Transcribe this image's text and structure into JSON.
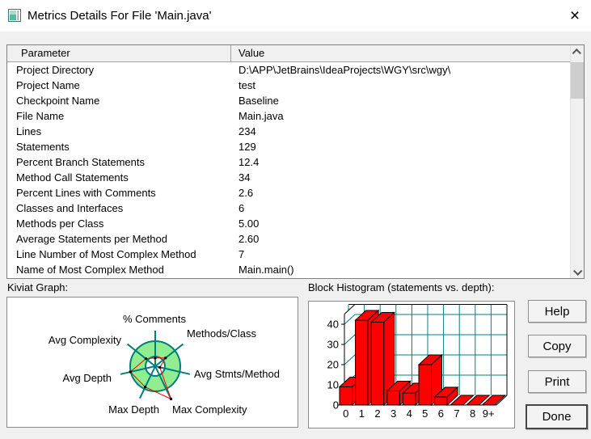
{
  "window": {
    "title": "Metrics Details For File 'Main.java'",
    "close_glyph": "×"
  },
  "table": {
    "columns": [
      "Parameter",
      "Value"
    ],
    "rows": [
      [
        "Project Directory",
        "D:\\APP\\JetBrains\\IdeaProjects\\WGY\\src\\wgy\\"
      ],
      [
        "Project Name",
        "test"
      ],
      [
        "Checkpoint Name",
        "Baseline"
      ],
      [
        "File Name",
        "Main.java"
      ],
      [
        "Lines",
        "234"
      ],
      [
        "Statements",
        "129"
      ],
      [
        "Percent Branch Statements",
        "12.4"
      ],
      [
        "Method Call Statements",
        "34"
      ],
      [
        "Percent Lines with Comments",
        "2.6"
      ],
      [
        "Classes and Interfaces",
        "6"
      ],
      [
        "Methods per Class",
        "5.00"
      ],
      [
        "Average Statements per Method",
        "2.60"
      ],
      [
        "Line Number of Most Complex Method",
        "7"
      ],
      [
        "Name of Most Complex Method",
        "Main.main()"
      ]
    ]
  },
  "kiviat_label": "Kiviat Graph:",
  "histogram_label": "Block Histogram (statements vs. depth):",
  "buttons": {
    "help": "Help",
    "copy": "Copy",
    "print": "Print",
    "done": "Done"
  },
  "chart_data": [
    {
      "type": "radar",
      "title": "Kiviat Graph",
      "axes": [
        "% Comments",
        "Methods/Class",
        "Avg Stmts/Method",
        "Max Complexity",
        "Max Depth",
        "Avg Depth",
        "Avg Complexity"
      ],
      "values": [
        0.33,
        0.53,
        0.19,
        1.45,
        0.92,
        1.02,
        0.48
      ],
      "scale_note": "values are fractions of the outer ring radius (outer ring = 1.0)",
      "rings": {
        "inner_radius_fraction": 0.39,
        "outer_radius_fraction": 1.0
      },
      "legend_position": "none",
      "colors": {
        "ring_fill": "#90ee90",
        "axis": "#007d7d",
        "polygon": "#ff0000",
        "point": "#000000",
        "center_fill": "#ffffff"
      }
    },
    {
      "type": "bar",
      "title": "Block Histogram (statements vs. depth)",
      "categories": [
        "0",
        "1",
        "2",
        "3",
        "4",
        "5",
        "6",
        "7",
        "8",
        "9+"
      ],
      "values": [
        9,
        42,
        41,
        7,
        6,
        20,
        4,
        0,
        0,
        0
      ],
      "xlabel": "depth",
      "ylabel": "statements",
      "ylim": [
        0,
        45
      ],
      "yticks": [
        0,
        10,
        20,
        30,
        40
      ],
      "grid": true,
      "style": "3d",
      "colors": {
        "bar": "#ff0000",
        "grid": "#008080",
        "outline": "#000000",
        "wall": "#ffffff"
      }
    }
  ]
}
